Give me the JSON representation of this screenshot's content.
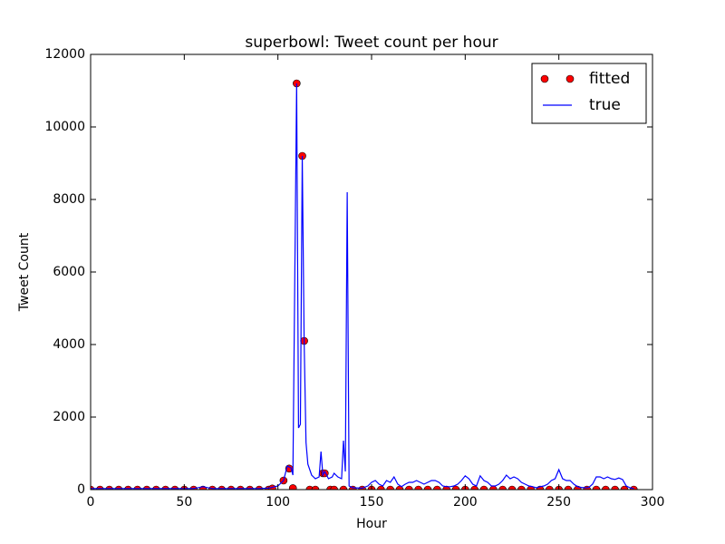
{
  "chart_data": {
    "type": "line",
    "title": "superbowl: Tweet count per hour",
    "x_label": "Hour",
    "y_label": "Tweet Count",
    "xlim": [
      0,
      300
    ],
    "ylim": [
      0,
      12000
    ],
    "xticks": [
      0,
      50,
      100,
      150,
      200,
      250,
      300
    ],
    "yticks": [
      0,
      2000,
      4000,
      6000,
      8000,
      10000,
      12000
    ],
    "legend": "upper right",
    "series": [
      {
        "name": "fitted",
        "color": "#ff0000",
        "marker": "o",
        "x": [
          0,
          5,
          10,
          15,
          20,
          25,
          30,
          35,
          40,
          45,
          50,
          55,
          60,
          65,
          70,
          75,
          80,
          85,
          90,
          95,
          97,
          103,
          106,
          108,
          110,
          113,
          114,
          117,
          120,
          124,
          125,
          128,
          130,
          135,
          140,
          145,
          150,
          155,
          160,
          165,
          170,
          175,
          180,
          185,
          190,
          195,
          200,
          205,
          210,
          215,
          220,
          225,
          230,
          235,
          240,
          245,
          250,
          255,
          260,
          265,
          270,
          275,
          280,
          285,
          290
        ],
        "values": [
          0,
          0,
          0,
          0,
          0,
          0,
          0,
          0,
          0,
          0,
          0,
          0,
          0,
          0,
          0,
          0,
          0,
          0,
          0,
          0,
          30,
          250,
          580,
          40,
          11200,
          9200,
          4100,
          0,
          0,
          450,
          450,
          0,
          0,
          0,
          0,
          0,
          0,
          0,
          0,
          0,
          0,
          0,
          0,
          0,
          0,
          0,
          0,
          0,
          0,
          0,
          0,
          0,
          0,
          0,
          0,
          0,
          0,
          0,
          0,
          0,
          0,
          0,
          0,
          0,
          0
        ]
      },
      {
        "name": "true",
        "color": "#0000ff",
        "x": [
          0,
          5,
          10,
          15,
          20,
          25,
          30,
          35,
          40,
          45,
          50,
          55,
          60,
          65,
          70,
          75,
          80,
          85,
          90,
          95,
          100,
          103,
          105,
          107,
          108,
          110,
          111,
          112,
          113,
          114,
          115,
          116,
          118,
          120,
          122,
          123,
          124,
          125,
          127,
          129,
          130,
          132,
          134,
          135,
          136,
          137,
          138,
          140,
          145,
          148,
          150,
          152,
          154,
          156,
          158,
          160,
          162,
          164,
          166,
          168,
          170,
          172,
          174,
          176,
          178,
          180,
          182,
          184,
          186,
          188,
          190,
          192,
          194,
          196,
          198,
          200,
          202,
          204,
          206,
          208,
          210,
          212,
          214,
          216,
          218,
          220,
          222,
          224,
          226,
          228,
          230,
          232,
          234,
          236,
          238,
          240,
          242,
          244,
          246,
          248,
          250,
          252,
          254,
          256,
          258,
          260,
          262,
          264,
          266,
          268,
          270,
          272,
          274,
          276,
          278,
          280,
          282,
          284,
          286,
          288,
          290
        ],
        "values": [
          30,
          30,
          30,
          30,
          30,
          30,
          30,
          30,
          30,
          30,
          30,
          30,
          80,
          30,
          30,
          30,
          30,
          30,
          30,
          40,
          100,
          250,
          650,
          600,
          400,
          11200,
          1700,
          1800,
          9200,
          4100,
          1300,
          700,
          400,
          300,
          350,
          1050,
          400,
          500,
          300,
          350,
          450,
          350,
          300,
          1350,
          500,
          8200,
          100,
          50,
          40,
          100,
          200,
          250,
          150,
          100,
          250,
          200,
          350,
          150,
          80,
          150,
          200,
          200,
          250,
          200,
          150,
          200,
          250,
          250,
          200,
          100,
          80,
          80,
          100,
          150,
          250,
          380,
          300,
          150,
          100,
          380,
          250,
          200,
          100,
          100,
          150,
          250,
          400,
          300,
          350,
          300,
          200,
          150,
          100,
          80,
          50,
          80,
          100,
          150,
          250,
          300,
          550,
          300,
          250,
          250,
          150,
          80,
          60,
          50,
          60,
          150,
          350,
          350,
          300,
          350,
          300,
          280,
          320,
          280,
          100,
          50,
          30
        ]
      }
    ]
  }
}
